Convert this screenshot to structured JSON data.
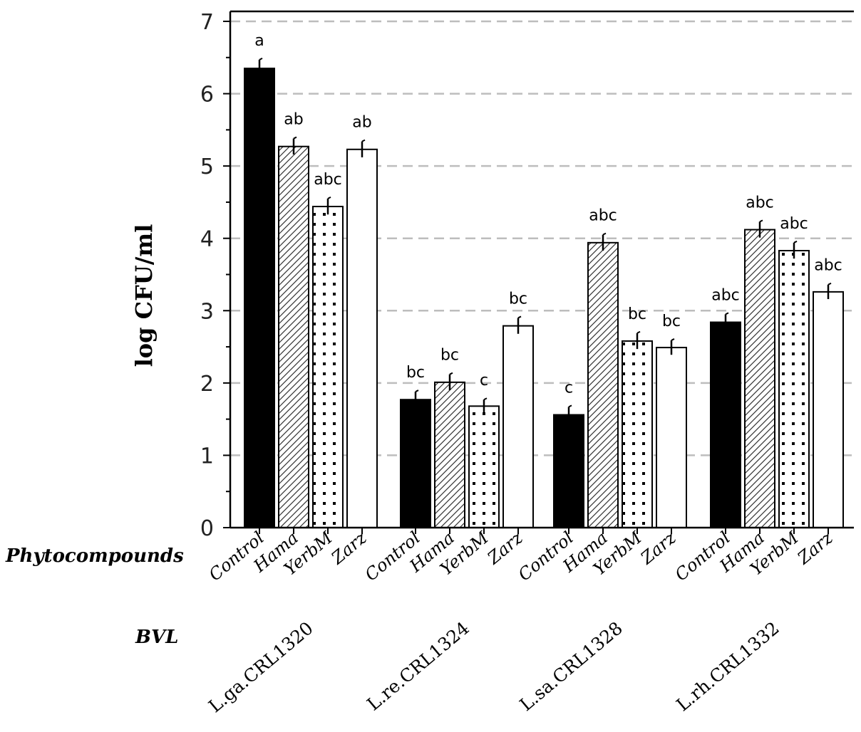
{
  "chart_data": {
    "type": "bar",
    "ylabel": "log CFU/ml",
    "ylim": [
      0,
      7
    ],
    "yticks": [
      "0",
      "1",
      "2",
      "3",
      "4",
      "5",
      "6",
      "7"
    ],
    "grid": "horizontal dashed",
    "row_labels": {
      "categories": "Phytocompounds",
      "groups": "BVL"
    },
    "treatments": [
      {
        "name": "Control",
        "pattern": "solid"
      },
      {
        "name": "Hama",
        "pattern": "hatch"
      },
      {
        "name": "YerbM",
        "pattern": "dots"
      },
      {
        "name": "Zarz",
        "pattern": "empty"
      }
    ],
    "groups": [
      {
        "name": "L.ga.CRL1320",
        "values": [
          6.35,
          5.27,
          4.44,
          5.23
        ],
        "errors": [
          0.12,
          0.11,
          0.11,
          0.11
        ],
        "significance": [
          "a",
          "ab",
          "abc",
          "ab"
        ]
      },
      {
        "name": "L.re.CRL1324",
        "values": [
          1.77,
          2.01,
          1.68,
          2.79
        ],
        "errors": [
          0.11,
          0.11,
          0.09,
          0.11
        ],
        "significance": [
          "bc",
          "bc",
          "c",
          "bc"
        ]
      },
      {
        "name": "L.sa.CRL1328",
        "values": [
          1.56,
          3.94,
          2.58,
          2.49
        ],
        "errors": [
          0.11,
          0.11,
          0.11,
          0.1
        ],
        "significance": [
          "c",
          "abc",
          "bc",
          "bc"
        ]
      },
      {
        "name": "L.rh.CRL1332",
        "values": [
          2.84,
          4.12,
          3.83,
          3.26
        ],
        "errors": [
          0.11,
          0.11,
          0.11,
          0.1
        ],
        "significance": [
          "abc",
          "abc",
          "abc",
          "abc"
        ]
      }
    ]
  }
}
